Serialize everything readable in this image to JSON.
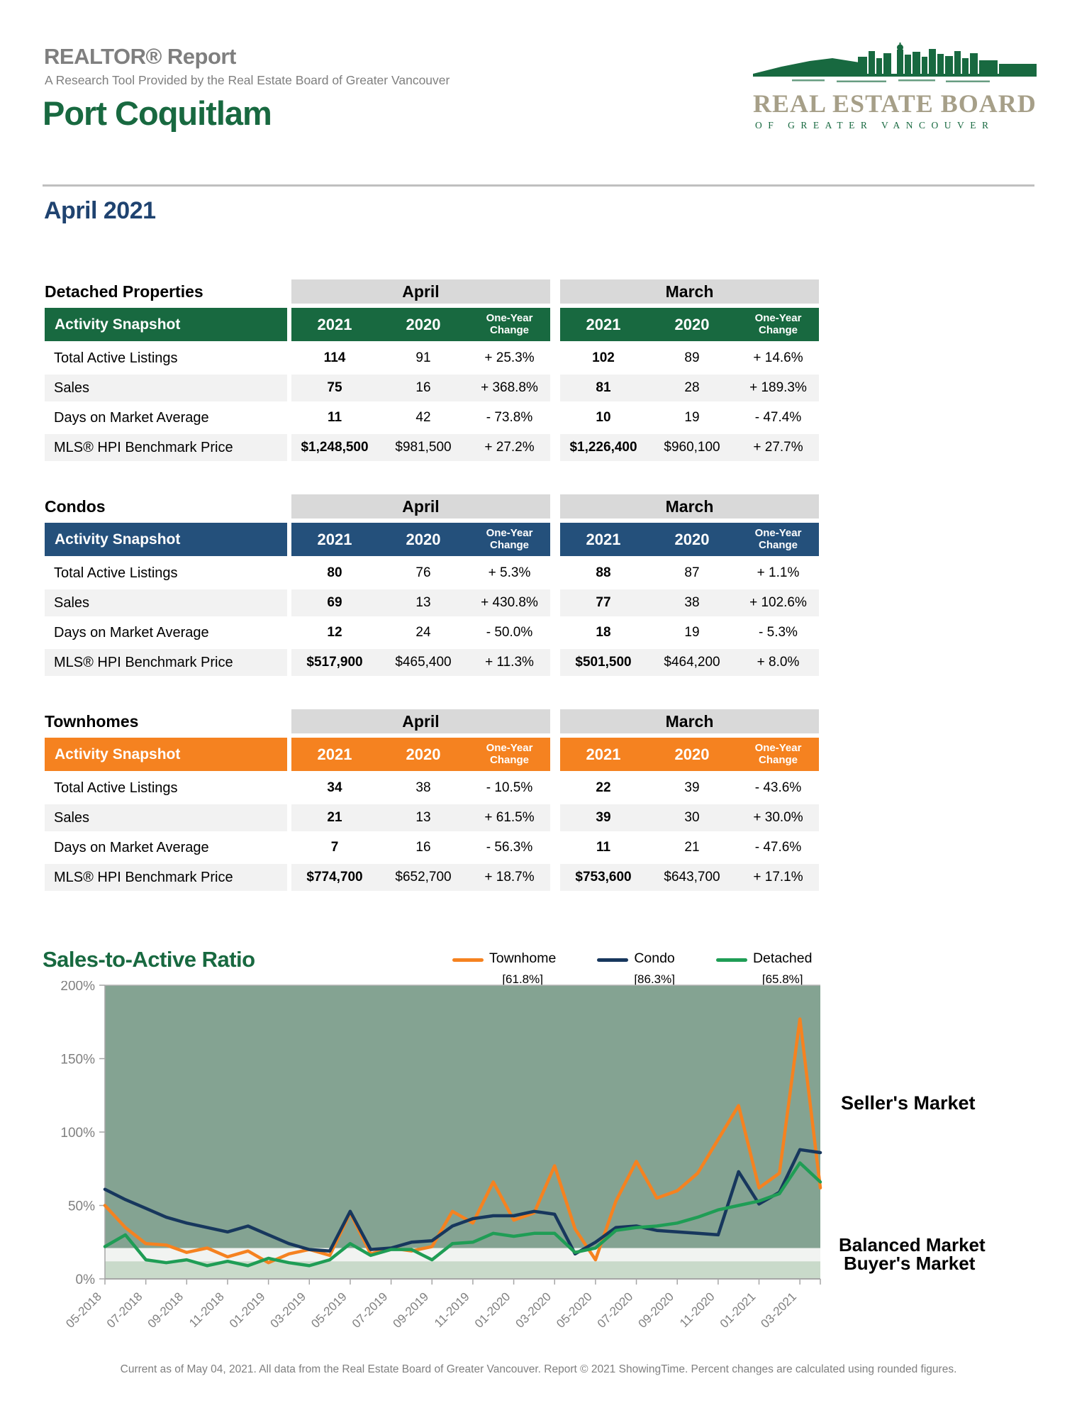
{
  "header": {
    "report_title": "REALTOR® Report",
    "subtitle": "A Research Tool Provided by the Real Estate Board of Greater Vancouver",
    "city": "Port Coquitlam",
    "period": "April 2021",
    "logo": {
      "line1": "REAL ESTATE BOARD",
      "line2": "OF GREATER VANCOUVER"
    }
  },
  "tables": [
    {
      "section": "Detached Properties",
      "accent": "#186940",
      "col_groups": [
        "April",
        "March"
      ],
      "header_label": "Activity Snapshot",
      "col_headers": [
        "2021",
        "2020",
        "One-Year Change",
        "2021",
        "2020",
        "One-Year Change"
      ],
      "rows": [
        {
          "label": "Total Active Listings",
          "values": [
            "114",
            "91",
            "+ 25.3%",
            "102",
            "89",
            "+ 14.6%"
          ]
        },
        {
          "label": "Sales",
          "values": [
            "75",
            "16",
            "+ 368.8%",
            "81",
            "28",
            "+ 189.3%"
          ]
        },
        {
          "label": "Days on Market Average",
          "values": [
            "11",
            "42",
            "- 73.8%",
            "10",
            "19",
            "- 47.4%"
          ]
        },
        {
          "label": "MLS® HPI Benchmark Price",
          "values": [
            "$1,248,500",
            "$981,500",
            "+ 27.2%",
            "$1,226,400",
            "$960,100",
            "+ 27.7%"
          ]
        }
      ]
    },
    {
      "section": "Condos",
      "accent": "#24507B",
      "col_groups": [
        "April",
        "March"
      ],
      "header_label": "Activity Snapshot",
      "col_headers": [
        "2021",
        "2020",
        "One-Year Change",
        "2021",
        "2020",
        "One-Year Change"
      ],
      "rows": [
        {
          "label": "Total Active Listings",
          "values": [
            "80",
            "76",
            "+ 5.3%",
            "88",
            "87",
            "+ 1.1%"
          ]
        },
        {
          "label": "Sales",
          "values": [
            "69",
            "13",
            "+ 430.8%",
            "77",
            "38",
            "+ 102.6%"
          ]
        },
        {
          "label": "Days on Market Average",
          "values": [
            "12",
            "24",
            "- 50.0%",
            "18",
            "19",
            "- 5.3%"
          ]
        },
        {
          "label": "MLS® HPI Benchmark Price",
          "values": [
            "$517,900",
            "$465,400",
            "+ 11.3%",
            "$501,500",
            "$464,200",
            "+ 8.0%"
          ]
        }
      ]
    },
    {
      "section": "Townhomes",
      "accent": "#F58220",
      "col_groups": [
        "April",
        "March"
      ],
      "header_label": "Activity Snapshot",
      "col_headers": [
        "2021",
        "2020",
        "One-Year Change",
        "2021",
        "2020",
        "One-Year Change"
      ],
      "rows": [
        {
          "label": "Total Active Listings",
          "values": [
            "34",
            "38",
            "- 10.5%",
            "22",
            "39",
            "- 43.6%"
          ]
        },
        {
          "label": "Sales",
          "values": [
            "21",
            "13",
            "+ 61.5%",
            "39",
            "30",
            "+ 30.0%"
          ]
        },
        {
          "label": "Days on Market Average",
          "values": [
            "7",
            "16",
            "- 56.3%",
            "11",
            "21",
            "- 47.6%"
          ]
        },
        {
          "label": "MLS® HPI Benchmark Price",
          "values": [
            "$774,700",
            "$652,700",
            "+ 18.7%",
            "$753,600",
            "$643,700",
            "+ 17.1%"
          ]
        }
      ]
    }
  ],
  "chart_data": {
    "type": "line",
    "title": "Sales-to-Active Ratio",
    "ylim": [
      0,
      200
    ],
    "yticks": [
      0,
      50,
      100,
      150,
      200
    ],
    "tick_every": 2,
    "grid": false,
    "legend_position": "top",
    "x": [
      "05-2018",
      "06-2018",
      "07-2018",
      "08-2018",
      "09-2018",
      "10-2018",
      "11-2018",
      "12-2018",
      "01-2019",
      "02-2019",
      "03-2019",
      "04-2019",
      "05-2019",
      "06-2019",
      "07-2019",
      "08-2019",
      "09-2019",
      "10-2019",
      "11-2019",
      "12-2019",
      "01-2020",
      "02-2020",
      "03-2020",
      "04-2020",
      "05-2020",
      "06-2020",
      "07-2020",
      "08-2020",
      "09-2020",
      "10-2020",
      "11-2020",
      "12-2020",
      "01-2021",
      "02-2021",
      "03-2021",
      "04-2021"
    ],
    "bands": [
      {
        "name": "buyers-market",
        "range": [
          0,
          12
        ],
        "color": "#C9DACA"
      },
      {
        "name": "balanced-market",
        "range": [
          12,
          21
        ],
        "color": "#F1F3F1"
      },
      {
        "name": "sellers-market",
        "range": [
          21,
          200
        ],
        "color": "#84A392"
      }
    ],
    "series": [
      {
        "name": "Townhome",
        "current": "[61.8%]",
        "color": "#F58220",
        "values": [
          50,
          35,
          24,
          23,
          18,
          21,
          15,
          19,
          11,
          17,
          20,
          16,
          45,
          17,
          21,
          19,
          22,
          46,
          38,
          66,
          40,
          45,
          77,
          34,
          13,
          53,
          80,
          55,
          60,
          72,
          95,
          118,
          62,
          72,
          177,
          62
        ]
      },
      {
        "name": "Condo",
        "current": "[86.3%]",
        "color": "#17375D",
        "values": [
          61,
          54,
          48,
          42,
          38,
          35,
          32,
          36,
          30,
          24,
          20,
          19,
          46,
          20,
          21,
          25,
          26,
          36,
          41,
          43,
          43,
          46,
          44,
          17,
          25,
          35,
          36,
          33,
          32,
          31,
          30,
          73,
          51,
          59,
          88,
          86
        ]
      },
      {
        "name": "Detached",
        "current": "[65.8%]",
        "color": "#1F9D55",
        "values": [
          22,
          30,
          13,
          11,
          13,
          9,
          12,
          9,
          14,
          11,
          9,
          13,
          24,
          16,
          20,
          20,
          13,
          24,
          25,
          31,
          29,
          31,
          31,
          18,
          21,
          33,
          35,
          36,
          38,
          42,
          47,
          50,
          53,
          58,
          79,
          66
        ]
      }
    ]
  },
  "market_labels": {
    "seller": "Seller's Market",
    "balanced": "Balanced Market",
    "buyer": "Buyer's Market"
  },
  "footer": "Current as of May 04, 2021. All data from the Real Estate Board of Greater Vancouver. Report © 2021 ShowingTime. Percent changes are calculated using rounded figures."
}
